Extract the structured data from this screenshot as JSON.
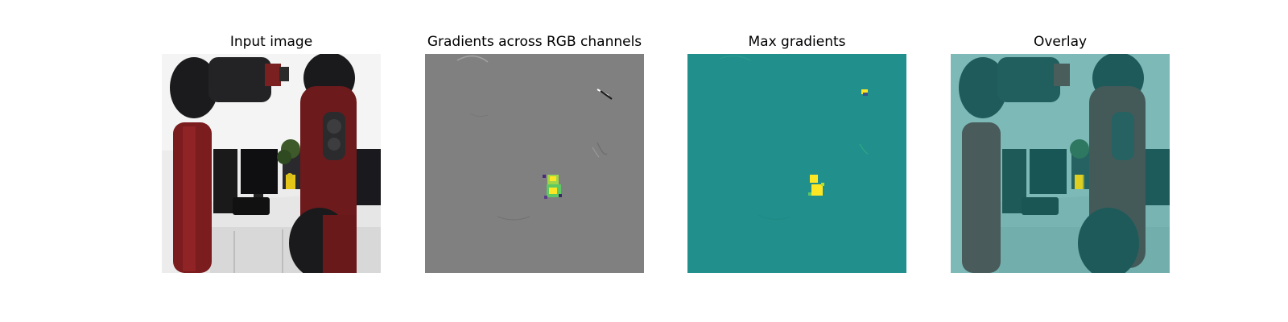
{
  "figure": {
    "panels": [
      {
        "title": "Input image"
      },
      {
        "title": "Gradients across RGB channels"
      },
      {
        "title": "Max gradients"
      },
      {
        "title": "Overlay"
      }
    ]
  },
  "colors": {
    "gradient_gray": "#808080",
    "max_gradient_teal": "#21908c",
    "highlight_yellow": "#fde725",
    "highlight_green": "#5ec962",
    "robot_red": "#7a1c1c",
    "wall_white": "#eeeeee"
  }
}
